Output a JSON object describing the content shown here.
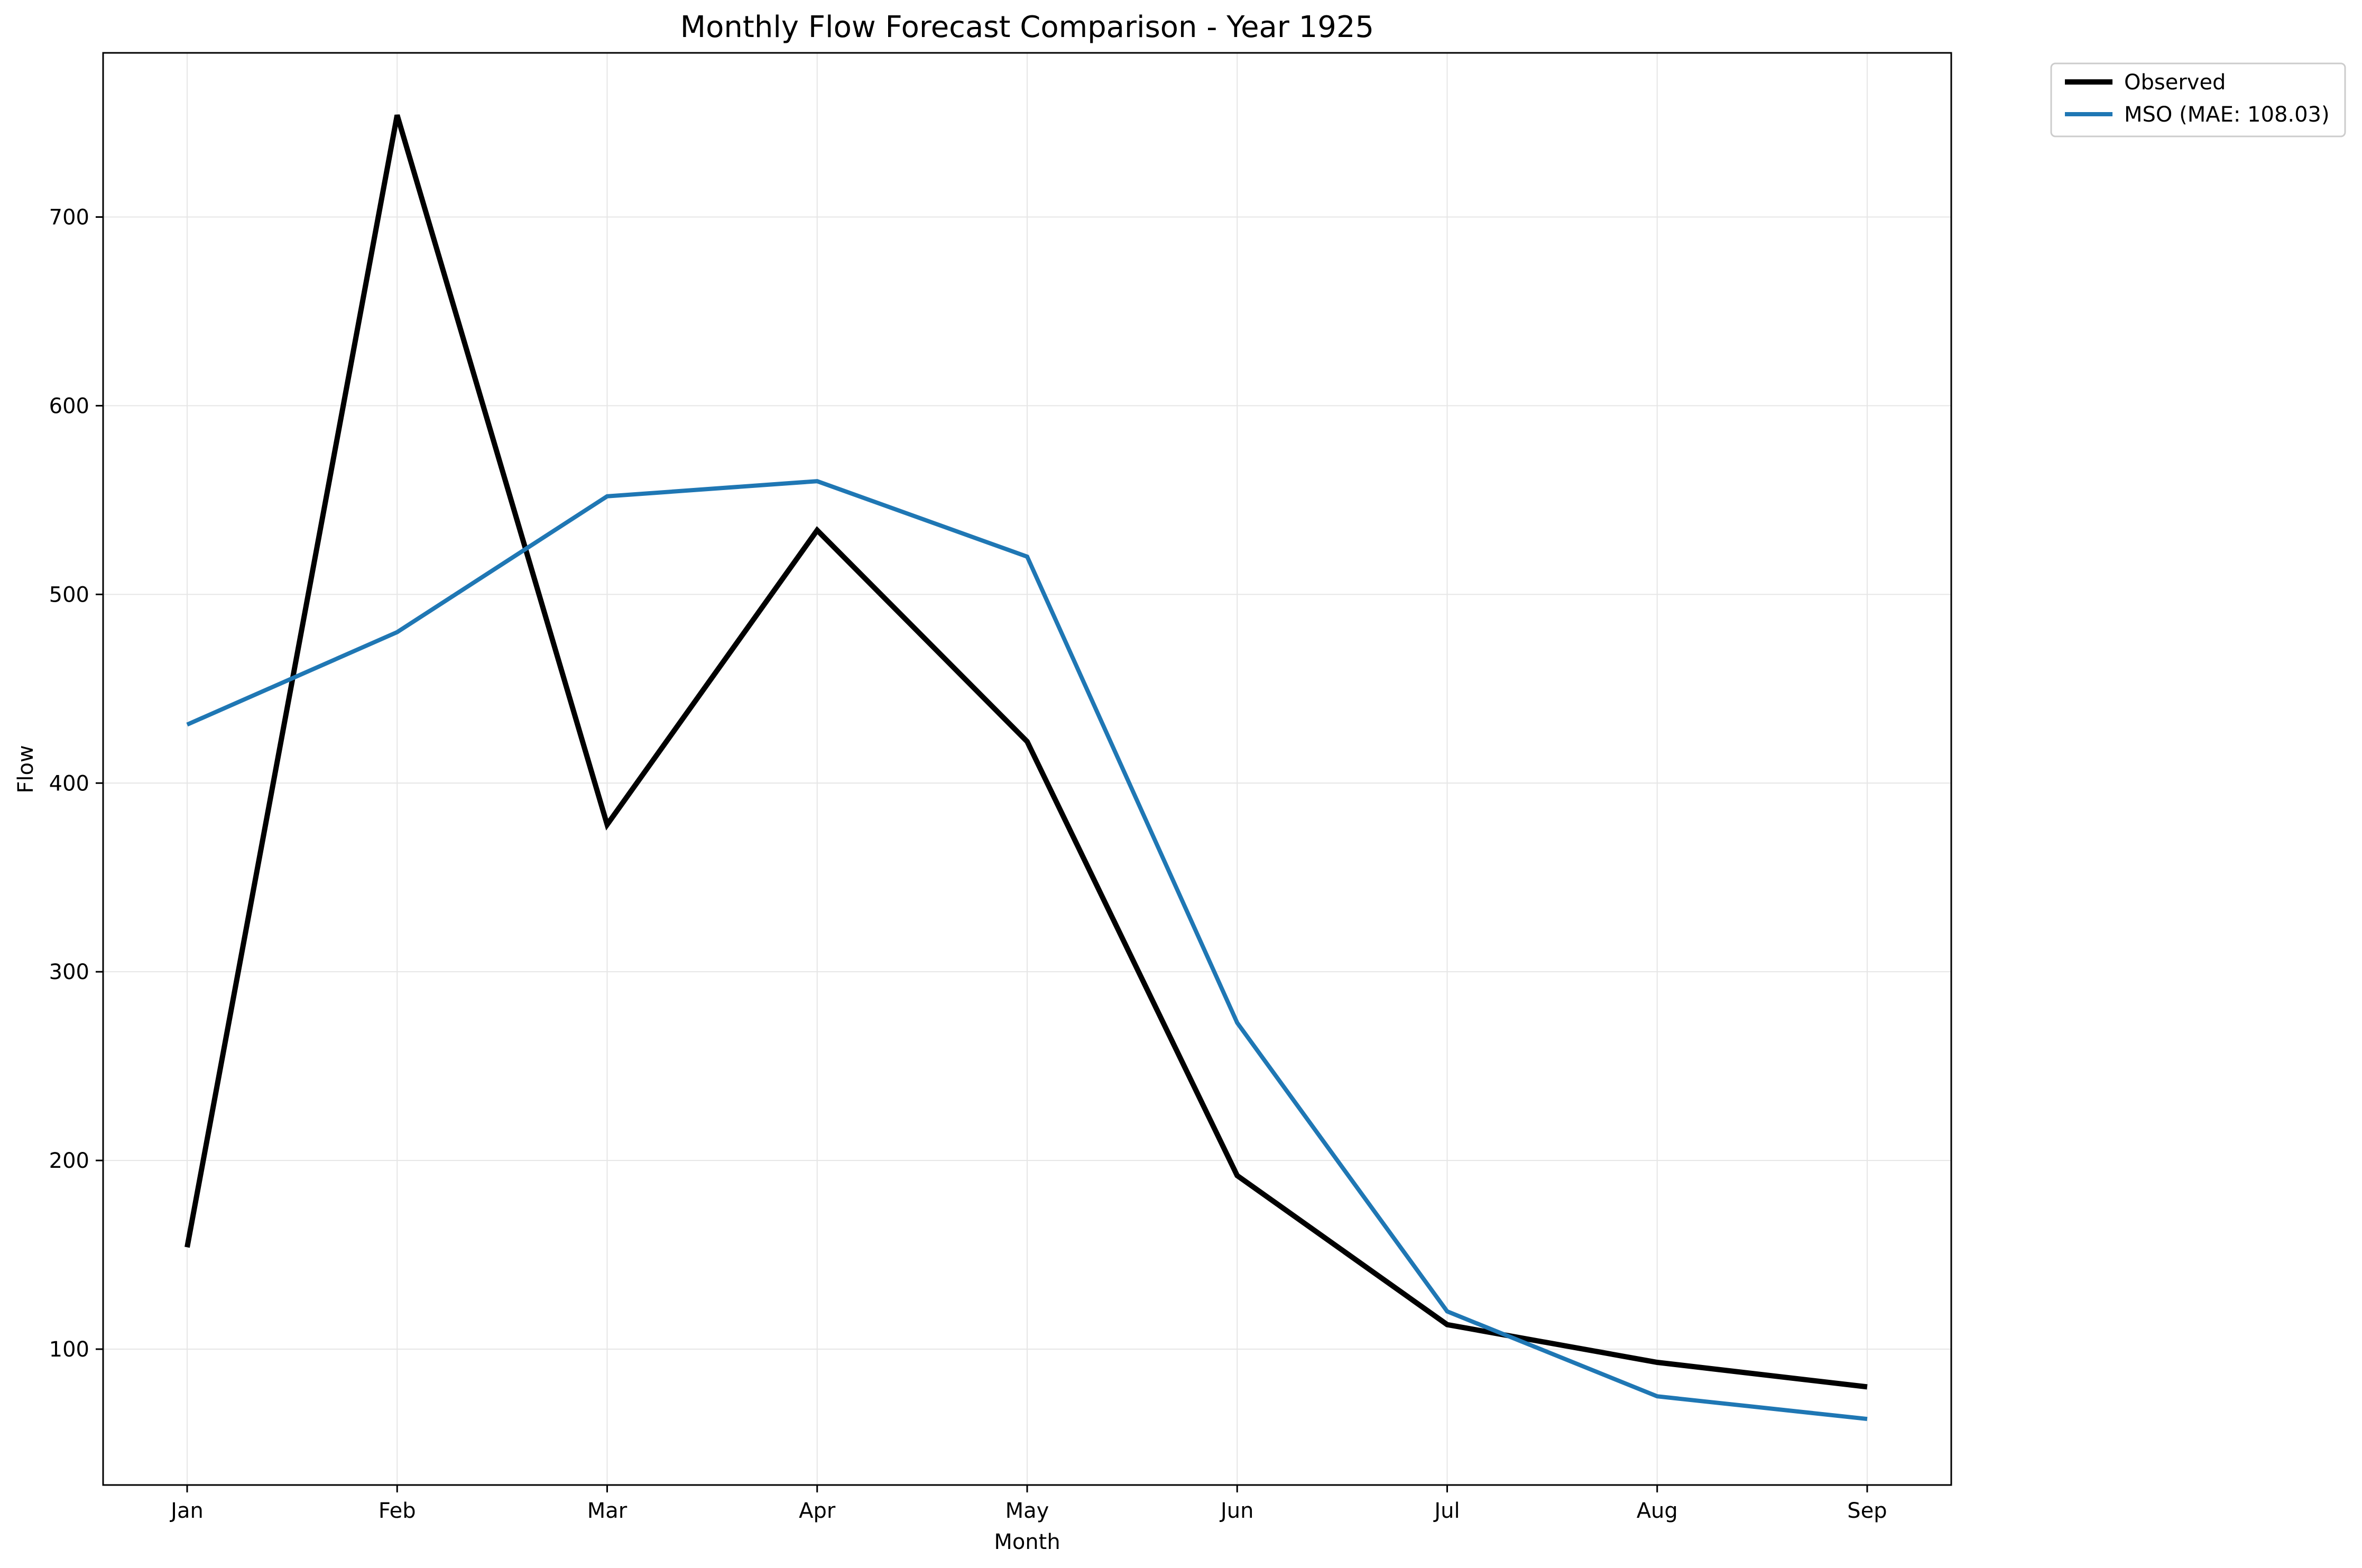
{
  "chart_data": {
    "type": "line",
    "title": "Monthly Flow Forecast Comparison - Year 1925",
    "xlabel": "Month",
    "ylabel": "Flow",
    "categories": [
      "Jan",
      "Feb",
      "Mar",
      "Apr",
      "May",
      "Jun",
      "Jul",
      "Aug",
      "Sep"
    ],
    "yticks": [
      100,
      200,
      300,
      400,
      500,
      600,
      700
    ],
    "ylim": [
      28,
      787
    ],
    "grid": true,
    "legend_position": "outside-top-right",
    "series": [
      {
        "name": "Observed",
        "color": "#000000",
        "values": [
          154,
          754,
          378,
          534,
          422,
          192,
          113,
          93,
          80
        ]
      },
      {
        "name": "MSO (MAE: 108.03)",
        "color": "#1f77b4",
        "values": [
          431,
          480,
          552,
          560,
          520,
          273,
          120,
          75,
          63
        ]
      }
    ]
  }
}
